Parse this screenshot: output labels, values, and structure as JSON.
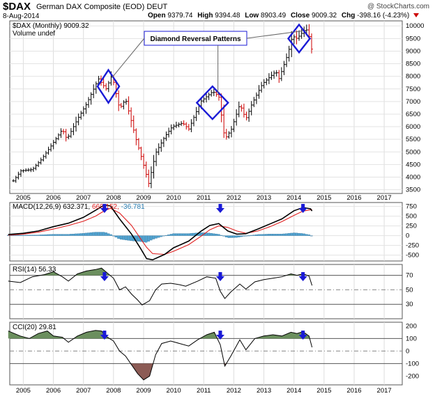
{
  "header": {
    "symbol": "$DAX",
    "name": "German DAX Composite (EOD)",
    "exchange": "DEUT",
    "date": "8-Aug-2014",
    "credit": "@ StockCharts.com",
    "open_label": "Open",
    "open": "9379.74",
    "high_label": "High",
    "high": "9394.48",
    "low_label": "Low",
    "low": "8903.49",
    "close_label": "Close",
    "close": "9009.32",
    "chg_label": "Chg",
    "chg": "-398.16 (-4.23%)"
  },
  "colors": {
    "up": "#000000",
    "down": "#cc0000",
    "macd_line": "#000000",
    "signal": "#e02020",
    "hist": "#4fa3d1",
    "osc_fill_hi": "#6b8f5e",
    "osc_fill_lo": "#8c5b55",
    "annot": "#1a1ad6"
  },
  "chart_data": [
    {
      "type": "bar",
      "title": "$DAX (Monthly) 9009.32",
      "legend": [
        "$DAX (Monthly) 9009.32",
        "Volume undef"
      ],
      "annotation": "Diamond Reversal Patterns",
      "x_ticks": [
        "2005",
        "2006",
        "2007",
        "2008",
        "2009",
        "2010",
        "2011",
        "2012",
        "2013",
        "2014",
        "2015",
        "2016",
        "2017"
      ],
      "y_ticks": [
        3500,
        4000,
        4500,
        5000,
        5500,
        6000,
        6500,
        7000,
        7500,
        8000,
        8500,
        9000,
        9500,
        10000
      ],
      "ylim": [
        3350,
        10200
      ],
      "price_path": [
        [
          2004.67,
          3850
        ],
        [
          2004.92,
          4250
        ],
        [
          2005.3,
          4300
        ],
        [
          2005.6,
          4700
        ],
        [
          2005.9,
          5200
        ],
        [
          2006.3,
          5900
        ],
        [
          2006.45,
          5500
        ],
        [
          2006.8,
          6300
        ],
        [
          2007.1,
          6900
        ],
        [
          2007.5,
          7900
        ],
        [
          2007.75,
          7500
        ],
        [
          2007.95,
          8050
        ],
        [
          2008.2,
          6700
        ],
        [
          2008.4,
          7100
        ],
        [
          2008.75,
          5500
        ],
        [
          2008.95,
          4700
        ],
        [
          2009.17,
          3750
        ],
        [
          2009.4,
          4950
        ],
        [
          2009.7,
          5600
        ],
        [
          2009.95,
          6000
        ],
        [
          2010.3,
          6150
        ],
        [
          2010.5,
          5900
        ],
        [
          2010.9,
          7000
        ],
        [
          2011.3,
          7400
        ],
        [
          2011.5,
          7200
        ],
        [
          2011.7,
          5500
        ],
        [
          2011.92,
          5900
        ],
        [
          2012.2,
          6900
        ],
        [
          2012.4,
          6300
        ],
        [
          2012.6,
          6900
        ],
        [
          2012.95,
          7700
        ],
        [
          2013.4,
          8200
        ],
        [
          2013.5,
          7900
        ],
        [
          2013.8,
          8900
        ],
        [
          2013.95,
          9600
        ],
        [
          2014.1,
          9500
        ],
        [
          2014.4,
          9900
        ],
        [
          2014.5,
          9600
        ],
        [
          2014.6,
          9000
        ]
      ],
      "diamonds": [
        {
          "center_x": 2007.83,
          "center_y": 7600,
          "half_w": 0.36,
          "half_h": 650
        },
        {
          "center_x": 2011.29,
          "center_y": 6950,
          "half_w": 0.52,
          "half_h": 650
        },
        {
          "center_x": 2014.17,
          "center_y": 9500,
          "half_w": 0.36,
          "half_h": 550
        }
      ]
    },
    {
      "type": "line",
      "title": "MACD(12,26,9) 632.371, 669.152, -36.781",
      "series": [
        {
          "name": "MACD",
          "values": [
            [
              2004.5,
              30
            ],
            [
              2005,
              60
            ],
            [
              2005.5,
              120
            ],
            [
              2006,
              230
            ],
            [
              2006.5,
              320
            ],
            [
              2007,
              470
            ],
            [
              2007.4,
              650
            ],
            [
              2007.7,
              790
            ],
            [
              2007.9,
              760
            ],
            [
              2008.2,
              430
            ],
            [
              2008.6,
              40
            ],
            [
              2008.9,
              -330
            ],
            [
              2009.1,
              -590
            ],
            [
              2009.3,
              -620
            ],
            [
              2009.7,
              -480
            ],
            [
              2010.0,
              -310
            ],
            [
              2010.5,
              -140
            ],
            [
              2010.9,
              110
            ],
            [
              2011.2,
              260
            ],
            [
              2011.5,
              310
            ],
            [
              2011.8,
              120
            ],
            [
              2012.1,
              40
            ],
            [
              2012.4,
              50
            ],
            [
              2012.8,
              170
            ],
            [
              2013.2,
              300
            ],
            [
              2013.6,
              430
            ],
            [
              2014.0,
              640
            ],
            [
              2014.3,
              720
            ],
            [
              2014.55,
              690
            ],
            [
              2014.6,
              632
            ]
          ]
        },
        {
          "name": "Signal",
          "values": [
            [
              2004.5,
              10
            ],
            [
              2005,
              40
            ],
            [
              2005.5,
              90
            ],
            [
              2006,
              170
            ],
            [
              2006.5,
              260
            ],
            [
              2007,
              370
            ],
            [
              2007.4,
              500
            ],
            [
              2007.7,
              640
            ],
            [
              2007.9,
              700
            ],
            [
              2008.2,
              580
            ],
            [
              2008.6,
              260
            ],
            [
              2008.9,
              -80
            ],
            [
              2009.1,
              -300
            ],
            [
              2009.3,
              -460
            ],
            [
              2009.7,
              -480
            ],
            [
              2010.0,
              -400
            ],
            [
              2010.5,
              -230
            ],
            [
              2010.9,
              -20
            ],
            [
              2011.2,
              150
            ],
            [
              2011.5,
              250
            ],
            [
              2011.8,
              210
            ],
            [
              2012.1,
              120
            ],
            [
              2012.4,
              60
            ],
            [
              2012.8,
              120
            ],
            [
              2013.2,
              230
            ],
            [
              2013.6,
              360
            ],
            [
              2014.0,
              520
            ],
            [
              2014.3,
              630
            ],
            [
              2014.55,
              665
            ],
            [
              2014.6,
              669
            ]
          ]
        }
      ],
      "y_ticks": [
        -500,
        -250,
        0,
        250,
        500,
        750
      ],
      "ylim": [
        -650,
        850
      ]
    },
    {
      "type": "area",
      "title": "RSI(14) 56.33",
      "values": [
        [
          2004.5,
          62
        ],
        [
          2004.9,
          60
        ],
        [
          2005.3,
          68
        ],
        [
          2005.7,
          71
        ],
        [
          2006.0,
          75
        ],
        [
          2006.3,
          68
        ],
        [
          2006.5,
          62
        ],
        [
          2006.8,
          72
        ],
        [
          2007.1,
          76
        ],
        [
          2007.4,
          78
        ],
        [
          2007.6,
          80
        ],
        [
          2007.8,
          73
        ],
        [
          2008.0,
          66
        ],
        [
          2008.2,
          50
        ],
        [
          2008.4,
          54
        ],
        [
          2008.6,
          44
        ],
        [
          2008.8,
          36
        ],
        [
          2008.95,
          29
        ],
        [
          2009.2,
          35
        ],
        [
          2009.4,
          50
        ],
        [
          2009.6,
          58
        ],
        [
          2009.9,
          59
        ],
        [
          2010.2,
          57
        ],
        [
          2010.4,
          55
        ],
        [
          2010.8,
          62
        ],
        [
          2011.1,
          68
        ],
        [
          2011.4,
          66
        ],
        [
          2011.55,
          48
        ],
        [
          2011.7,
          38
        ],
        [
          2011.9,
          47
        ],
        [
          2012.2,
          58
        ],
        [
          2012.4,
          51
        ],
        [
          2012.7,
          61
        ],
        [
          2013.0,
          64
        ],
        [
          2013.3,
          66
        ],
        [
          2013.6,
          68
        ],
        [
          2013.9,
          72
        ],
        [
          2014.1,
          70
        ],
        [
          2014.3,
          72
        ],
        [
          2014.5,
          69
        ],
        [
          2014.6,
          56
        ]
      ],
      "y_ticks": [
        30,
        50,
        70
      ],
      "ylim": [
        10,
        85
      ],
      "levels": [
        30,
        50,
        70
      ]
    },
    {
      "type": "area",
      "title": "CCI(20) 29.81",
      "values": [
        [
          2004.5,
          160
        ],
        [
          2004.9,
          120
        ],
        [
          2005.2,
          100
        ],
        [
          2005.5,
          140
        ],
        [
          2005.8,
          160
        ],
        [
          2006.0,
          120
        ],
        [
          2006.3,
          110
        ],
        [
          2006.5,
          70
        ],
        [
          2006.8,
          120
        ],
        [
          2007.1,
          150
        ],
        [
          2007.4,
          165
        ],
        [
          2007.6,
          160
        ],
        [
          2007.8,
          110
        ],
        [
          2008.0,
          80
        ],
        [
          2008.2,
          0
        ],
        [
          2008.4,
          -40
        ],
        [
          2008.6,
          -110
        ],
        [
          2008.8,
          -180
        ],
        [
          2009.0,
          -230
        ],
        [
          2009.2,
          -200
        ],
        [
          2009.4,
          -30
        ],
        [
          2009.6,
          60
        ],
        [
          2009.9,
          80
        ],
        [
          2010.2,
          60
        ],
        [
          2010.5,
          40
        ],
        [
          2010.8,
          90
        ],
        [
          2011.1,
          130
        ],
        [
          2011.35,
          150
        ],
        [
          2011.55,
          50
        ],
        [
          2011.7,
          -120
        ],
        [
          2011.9,
          -40
        ],
        [
          2012.2,
          90
        ],
        [
          2012.4,
          10
        ],
        [
          2012.7,
          100
        ],
        [
          2013.0,
          120
        ],
        [
          2013.3,
          130
        ],
        [
          2013.6,
          120
        ],
        [
          2013.9,
          150
        ],
        [
          2014.1,
          140
        ],
        [
          2014.3,
          155
        ],
        [
          2014.5,
          120
        ],
        [
          2014.6,
          30
        ]
      ],
      "y_ticks": [
        -200,
        -100,
        0,
        100,
        200
      ],
      "ylim": [
        -270,
        230
      ],
      "levels": [
        -100,
        0,
        100
      ]
    }
  ]
}
